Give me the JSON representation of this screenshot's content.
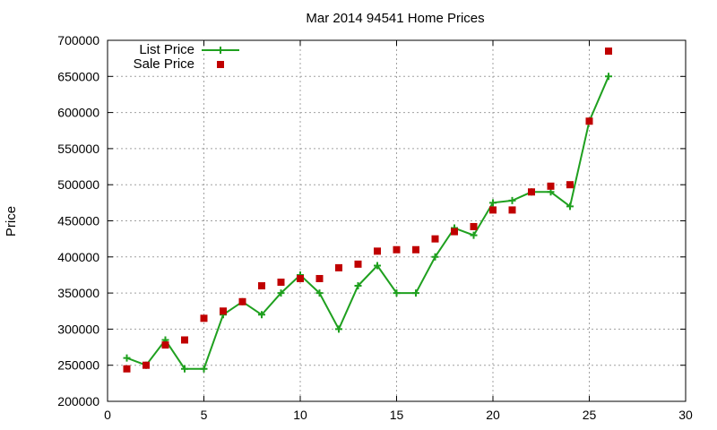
{
  "chart_data": {
    "type": "line",
    "title": "Mar 2014 94541 Home Prices",
    "xlabel": "",
    "ylabel": "Price",
    "xlim": [
      0,
      30
    ],
    "ylim": [
      200000,
      700000
    ],
    "xticks": [
      0,
      5,
      10,
      15,
      20,
      25,
      30
    ],
    "yticks": [
      200000,
      250000,
      300000,
      350000,
      400000,
      450000,
      500000,
      550000,
      600000,
      650000,
      700000
    ],
    "grid": true,
    "legend_position": "top-left",
    "series": [
      {
        "name": "List Price",
        "style": "line-with-plus-markers",
        "color": "#1fa01f",
        "x": [
          1,
          2,
          3,
          4,
          5,
          6,
          7,
          8,
          9,
          10,
          11,
          12,
          13,
          14,
          15,
          16,
          17,
          18,
          19,
          20,
          21,
          22,
          23,
          24,
          25,
          26
        ],
        "y": [
          260000,
          250000,
          285000,
          245000,
          245000,
          320000,
          338000,
          320000,
          350000,
          375000,
          350000,
          300000,
          360000,
          388000,
          350000,
          350000,
          400000,
          440000,
          430000,
          475000,
          478000,
          490000,
          490000,
          470000,
          588000,
          650000
        ]
      },
      {
        "name": "Sale Price",
        "style": "square-markers",
        "color": "#c00000",
        "x": [
          1,
          2,
          3,
          4,
          5,
          6,
          7,
          8,
          9,
          10,
          11,
          12,
          13,
          14,
          15,
          16,
          17,
          18,
          19,
          20,
          21,
          22,
          23,
          24,
          25,
          26
        ],
        "y": [
          245000,
          250000,
          278000,
          285000,
          315000,
          325000,
          338000,
          360000,
          365000,
          370000,
          370000,
          385000,
          390000,
          408000,
          410000,
          410000,
          425000,
          435000,
          442000,
          465000,
          465000,
          490000,
          498000,
          500000,
          588000,
          685000
        ]
      }
    ]
  }
}
